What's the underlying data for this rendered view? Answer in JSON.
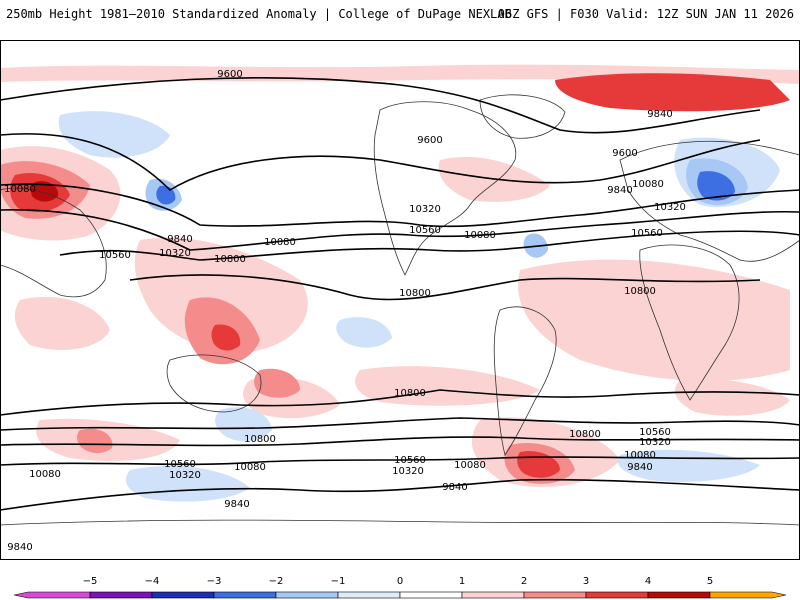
{
  "header": {
    "left": "250mb Height 1981–2010 Standardized Anomaly | College of DuPage NEXLAB",
    "right": "06Z GFS | F030 Valid: 12Z SUN JAN 11 2026"
  },
  "colorbar": {
    "ticks": [
      "−5",
      "−4",
      "−3",
      "−2",
      "−1",
      "0",
      "1",
      "2",
      "3",
      "4",
      "5"
    ],
    "colors": [
      "#d64ad6",
      "#7a12b8",
      "#1d2fb0",
      "#3d6fe3",
      "#a7c7f5",
      "#dcecfb",
      "#ffffff",
      "#fcd3d3",
      "#f48c8c",
      "#e63a3a",
      "#b80a0a",
      "#ffa500"
    ]
  },
  "contour_labels": [
    "9600",
    "9840",
    "10080",
    "10320",
    "10560",
    "10800"
  ],
  "anomaly_colors": {
    "weak_pos": "#fcd3d3",
    "mod_pos": "#f48c8c",
    "strong_pos": "#e63a3a",
    "extreme_pos": "#b80a0a",
    "weak_neg": "#cfe2fa",
    "mod_neg": "#a7c7f5",
    "strong_neg": "#3d6fe3",
    "extreme_neg": "#1d2fb0"
  }
}
